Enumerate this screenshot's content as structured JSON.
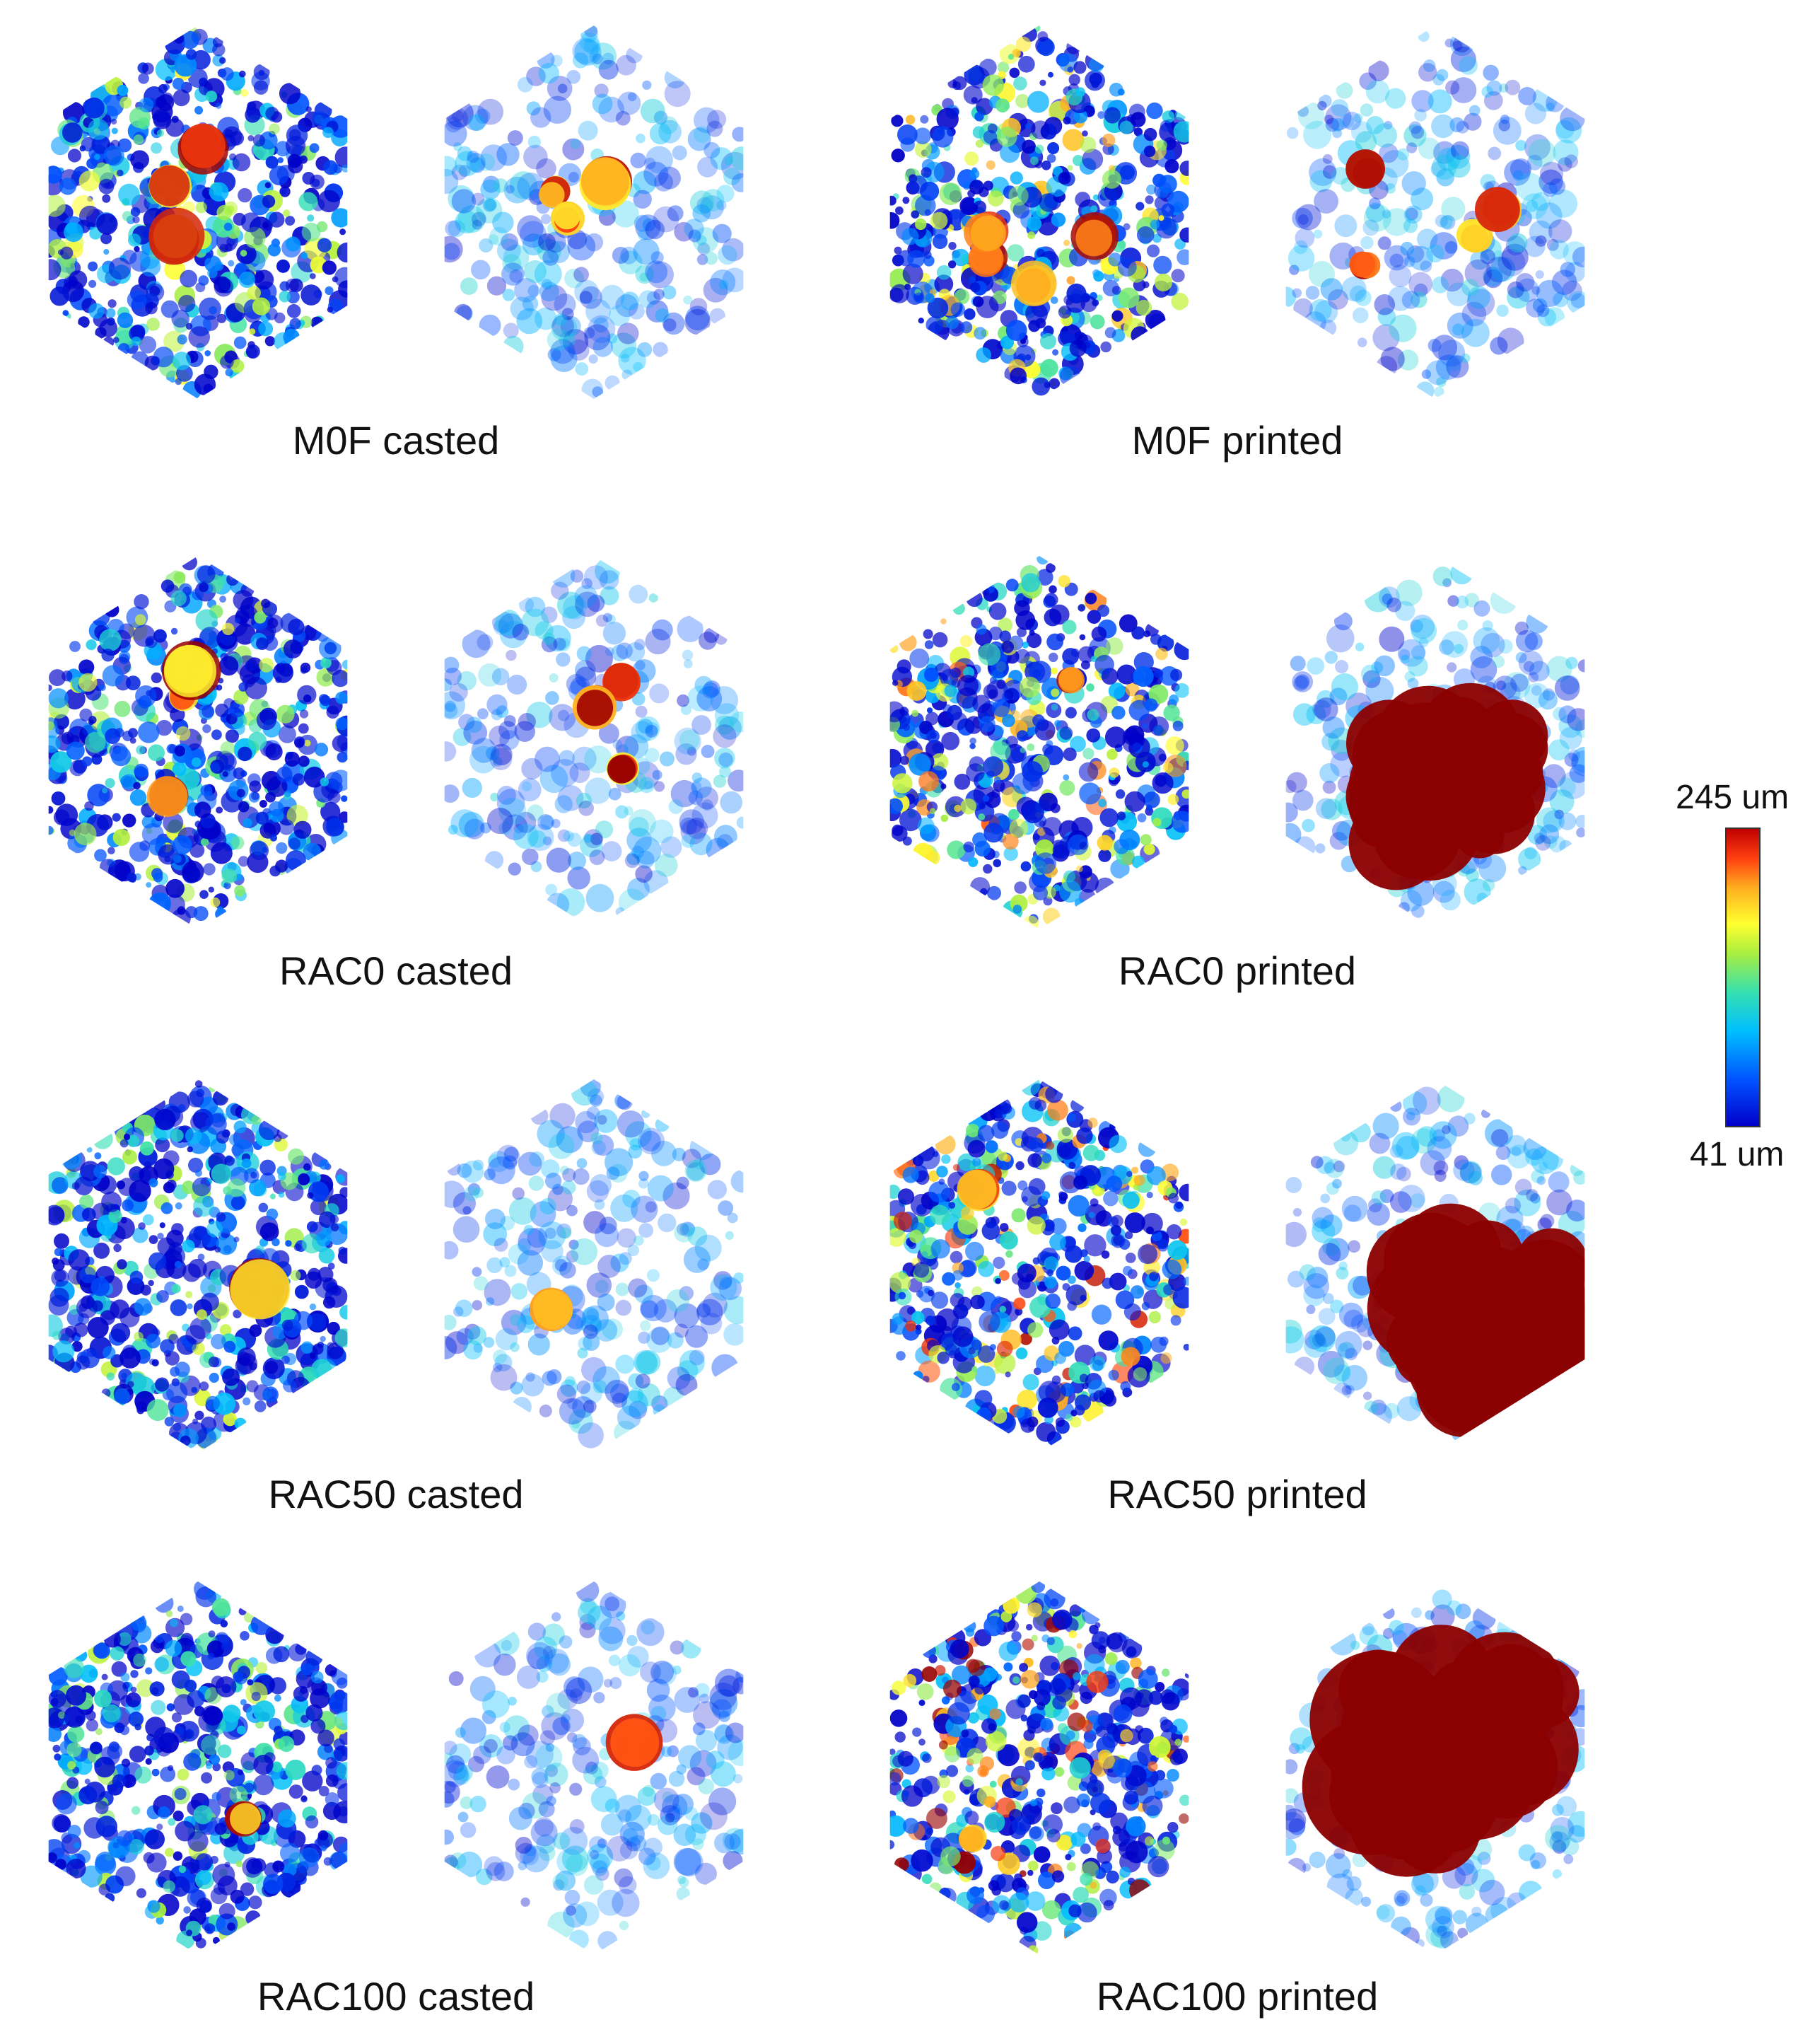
{
  "figure": {
    "panels": [
      {
        "id": "m0f-casted",
        "caption": "M0F casted",
        "style": "casted",
        "bias": 0.35,
        "hot": 3
      },
      {
        "id": "m0f-printed",
        "caption": "M0F printed",
        "style": "printed",
        "bias": 0.45,
        "hot": 4
      },
      {
        "id": "rac0-casted",
        "caption": "RAC0 casted",
        "style": "casted",
        "bias": 0.25,
        "hot": 3
      },
      {
        "id": "rac0-printed",
        "caption": "RAC0 printed",
        "style": "printed",
        "bias": 0.55,
        "hot": 1
      },
      {
        "id": "rac50-casted",
        "caption": "RAC50 casted",
        "style": "casted",
        "bias": 0.15,
        "hot": 1
      },
      {
        "id": "rac50-printed",
        "caption": "RAC50 printed",
        "style": "printed",
        "bias": 0.75,
        "hot": 1
      },
      {
        "id": "rac100-casted",
        "caption": "RAC100 casted",
        "style": "casted",
        "bias": 0.15,
        "hot": 1
      },
      {
        "id": "rac100-printed",
        "caption": "RAC100 printed",
        "style": "printed",
        "bias": 0.95,
        "hot": 1
      }
    ]
  },
  "colorbar": {
    "max_label": "245 um",
    "min_label": "41 um",
    "max_value": 245,
    "min_value": 41,
    "unit": "um"
  },
  "colors": {
    "low": "#0000c8",
    "high": "#8b0000",
    "pale": "#cfe0ff"
  }
}
